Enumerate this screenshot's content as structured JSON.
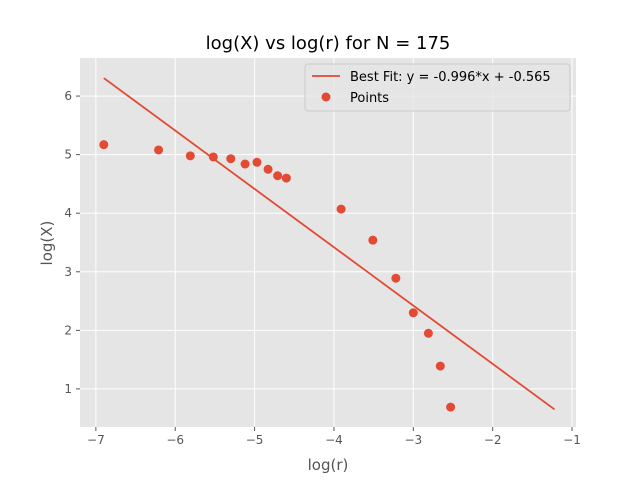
{
  "chart_data": {
    "type": "scatter",
    "title": "log(X) vs log(r) for N = 175",
    "xlabel": "log(r)",
    "ylabel": "log(X)",
    "xlim": [
      -7.2,
      -0.95
    ],
    "ylim": [
      0.35,
      6.65
    ],
    "xticks": [
      -7,
      -6,
      -5,
      -4,
      -3,
      -2,
      -1
    ],
    "xtick_labels": [
      "−7",
      "−6",
      "−5",
      "−4",
      "−3",
      "−2",
      "−1"
    ],
    "yticks": [
      1,
      2,
      3,
      4,
      5,
      6
    ],
    "ytick_labels": [
      "1",
      "2",
      "3",
      "4",
      "5",
      "6"
    ],
    "grid": true,
    "legend_position": "top-right",
    "colors": {
      "series": "#E24A33",
      "background": "#E5E5E5",
      "grid": "#FFFFFF"
    },
    "series": [
      {
        "name": "Best Fit: y = -0.996*x + -0.565",
        "kind": "line",
        "slope": -0.996,
        "intercept": -0.565,
        "x": [
          -6.9,
          -1.22
        ]
      },
      {
        "name": "Points",
        "kind": "scatter",
        "points": [
          {
            "x": -6.9,
            "y": 5.17
          },
          {
            "x": -6.21,
            "y": 5.08
          },
          {
            "x": -5.81,
            "y": 4.98
          },
          {
            "x": -5.52,
            "y": 4.96
          },
          {
            "x": -5.3,
            "y": 4.93
          },
          {
            "x": -5.12,
            "y": 4.84
          },
          {
            "x": -4.97,
            "y": 4.87
          },
          {
            "x": -4.83,
            "y": 4.75
          },
          {
            "x": -4.71,
            "y": 4.64
          },
          {
            "x": -4.6,
            "y": 4.6
          },
          {
            "x": -3.91,
            "y": 4.07
          },
          {
            "x": -3.51,
            "y": 3.54
          },
          {
            "x": -3.22,
            "y": 2.89
          },
          {
            "x": -3.0,
            "y": 2.3
          },
          {
            "x": -2.81,
            "y": 1.95
          },
          {
            "x": -2.66,
            "y": 1.39
          },
          {
            "x": -2.53,
            "y": 0.69
          }
        ]
      }
    ]
  }
}
